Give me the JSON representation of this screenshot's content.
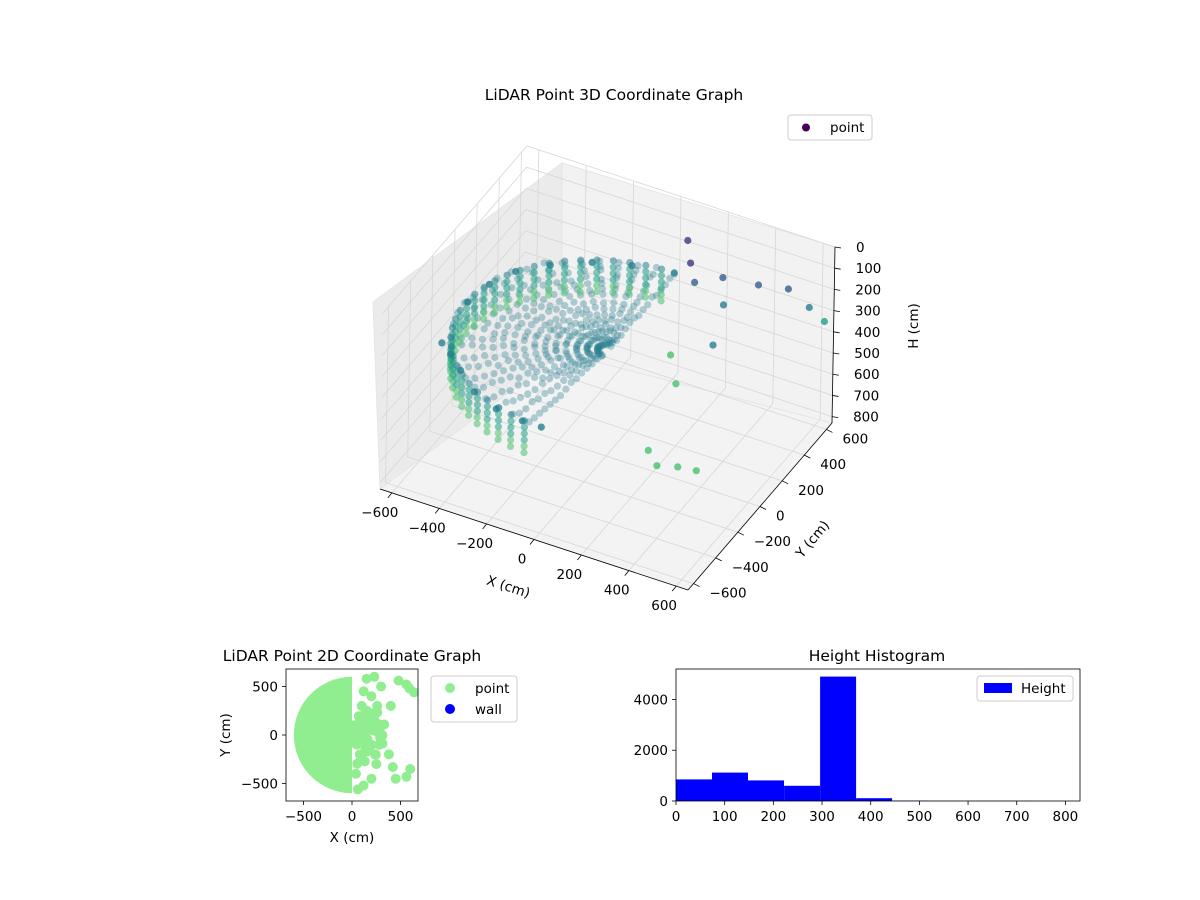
{
  "chart_data": [
    {
      "type": "scatter",
      "projection": "3d",
      "title": "LiDAR Point 3D Coordinate Graph",
      "xlabel": "X (cm)",
      "ylabel": "Y (cm)",
      "zlabel": "H (cm)",
      "xticks": [
        "−600",
        "−400",
        "−200",
        "0",
        "200",
        "400",
        "600"
      ],
      "yticks": [
        "−600",
        "−400",
        "−200",
        "0",
        "200",
        "400",
        "600"
      ],
      "zticks": [
        "0",
        "100",
        "200",
        "300",
        "400",
        "500",
        "600",
        "700",
        "800"
      ],
      "xlim": [
        -650,
        650
      ],
      "ylim": [
        -650,
        650
      ],
      "zlim": [
        0,
        830
      ],
      "z_inverted": true,
      "colormap": "viridis",
      "legend": {
        "position": "top-right",
        "entries": [
          "point"
        ]
      },
      "series": [
        {
          "name": "point",
          "color": "#440154",
          "shape": "half-disc room scan, radius ~600 cm, most points near H 300-350 cm",
          "points": [
            {
              "x": -560,
              "y": -300,
              "z": 320
            },
            {
              "x": -500,
              "y": -350,
              "z": 320
            },
            {
              "x": -420,
              "y": -430,
              "z": 320
            },
            {
              "x": -320,
              "y": -520,
              "z": 330
            },
            {
              "x": -200,
              "y": -580,
              "z": 330
            },
            {
              "x": -80,
              "y": -600,
              "z": 330
            },
            {
              "x": 0,
              "y": -600,
              "z": 330
            },
            {
              "x": -590,
              "y": 0,
              "z": 320
            },
            {
              "x": -570,
              "y": 150,
              "z": 320
            },
            {
              "x": -520,
              "y": 280,
              "z": 320
            },
            {
              "x": -430,
              "y": 400,
              "z": 330
            },
            {
              "x": -300,
              "y": 500,
              "z": 330
            },
            {
              "x": -160,
              "y": 560,
              "z": 330
            },
            {
              "x": 0,
              "y": 600,
              "z": 330
            },
            {
              "x": 100,
              "y": 500,
              "z": 80
            },
            {
              "x": 150,
              "y": 420,
              "z": 120
            },
            {
              "x": 200,
              "y": 350,
              "z": 150
            },
            {
              "x": 250,
              "y": 500,
              "z": 200
            },
            {
              "x": 300,
              "y": 400,
              "z": 250
            },
            {
              "x": 350,
              "y": 200,
              "z": 300
            },
            {
              "x": 400,
              "y": 500,
              "z": 180
            },
            {
              "x": 480,
              "y": 600,
              "z": 230
            },
            {
              "x": 560,
              "y": 620,
              "z": 300
            },
            {
              "x": 620,
              "y": 630,
              "z": 350
            },
            {
              "x": 200,
              "y": -50,
              "z": 700
            },
            {
              "x": 260,
              "y": -100,
              "z": 720
            },
            {
              "x": 320,
              "y": -40,
              "z": 740
            },
            {
              "x": 380,
              "y": 0,
              "z": 760
            },
            {
              "x": 150,
              "y": 250,
              "z": 450
            },
            {
              "x": 220,
              "y": 150,
              "z": 500
            }
          ]
        }
      ]
    },
    {
      "type": "scatter",
      "title": "LiDAR Point 2D Coordinate Graph",
      "xlabel": "X (cm)",
      "ylabel": "Y (cm)",
      "xticks": [
        "−500",
        "0",
        "500"
      ],
      "yticks": [
        "−500",
        "0",
        "500"
      ],
      "xlim": [
        -680,
        680
      ],
      "ylim": [
        -680,
        680
      ],
      "legend": {
        "position": "outside-right",
        "entries": [
          "point",
          "wall"
        ]
      },
      "series": [
        {
          "name": "point",
          "color": "#90ee90",
          "shape": "filled half-disc x<=0 radius ~600 plus scattered clusters x>0"
        },
        {
          "name": "wall",
          "color": "#0000ff",
          "points": []
        }
      ]
    },
    {
      "type": "bar",
      "subtype": "histogram",
      "title": "Height Histogram",
      "xlim": [
        0,
        830
      ],
      "ylim": [
        0,
        5200
      ],
      "xticks": [
        "0",
        "100",
        "200",
        "300",
        "400",
        "500",
        "600",
        "700",
        "800"
      ],
      "yticks": [
        "0",
        "2000",
        "4000"
      ],
      "bin_edges": [
        0,
        74,
        148,
        222,
        296,
        370,
        444,
        518,
        592,
        666,
        740
      ],
      "values": [
        850,
        1120,
        810,
        600,
        4900,
        110,
        10,
        5,
        5,
        5
      ],
      "color": "#0000ff",
      "legend": {
        "position": "top-right",
        "entries": [
          "Height"
        ]
      },
      "series": [
        {
          "name": "Height",
          "color": "#0000ff"
        }
      ]
    }
  ]
}
